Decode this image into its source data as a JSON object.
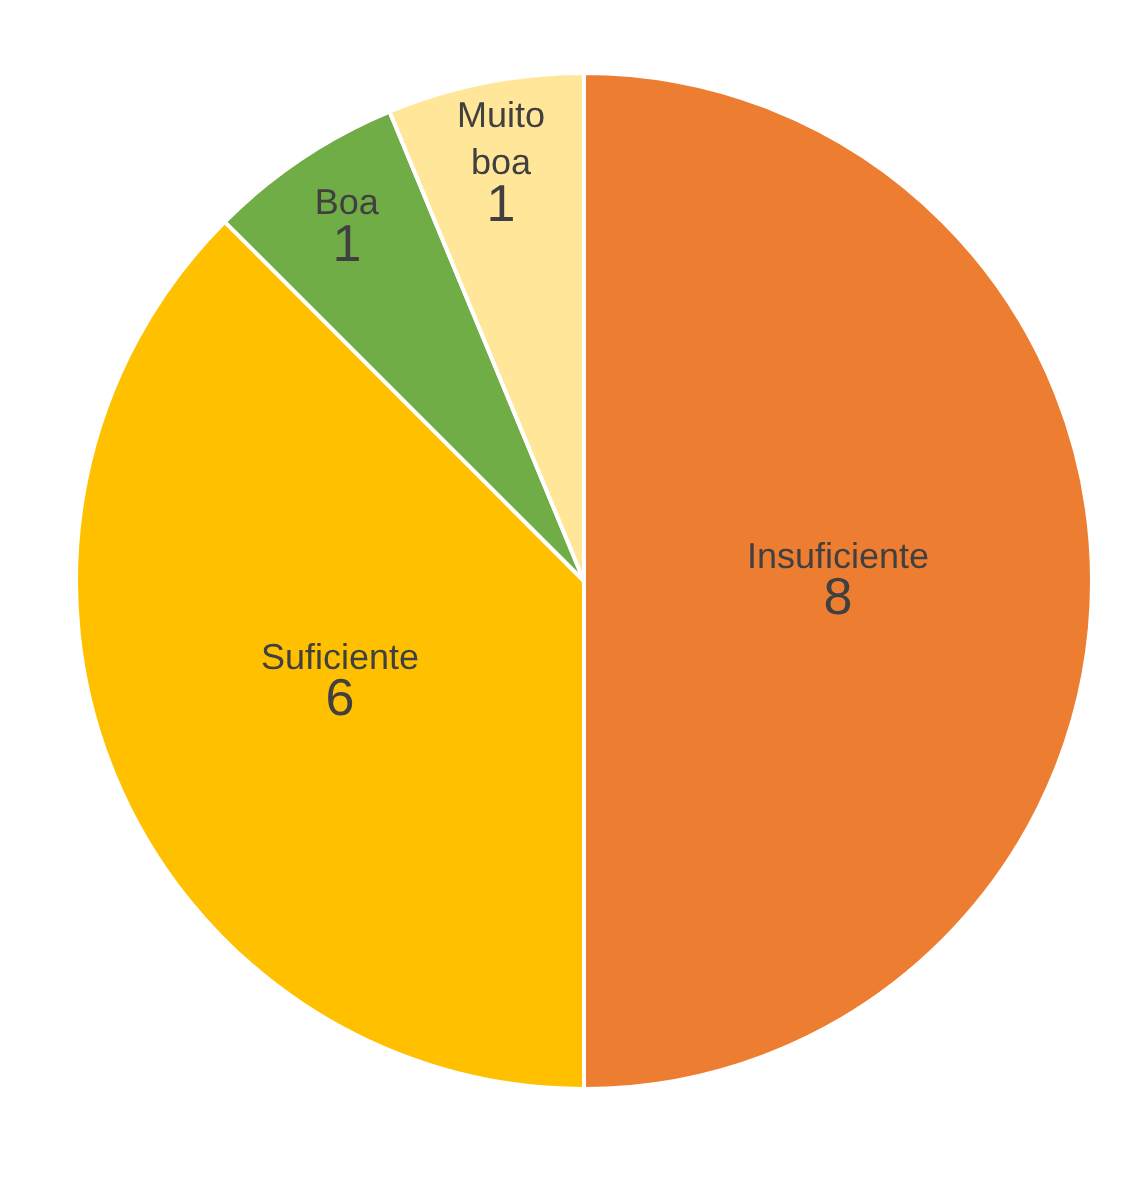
{
  "chart_data": {
    "type": "pie",
    "categories": [
      "Insuficiente",
      "Suficiente",
      "Boa",
      "Muito boa"
    ],
    "values": [
      8,
      6,
      1,
      1
    ],
    "colors": [
      "#ed7d31",
      "#ffc000",
      "#70ad47",
      "#ffe699"
    ],
    "data_labels": true,
    "legend": false
  }
}
